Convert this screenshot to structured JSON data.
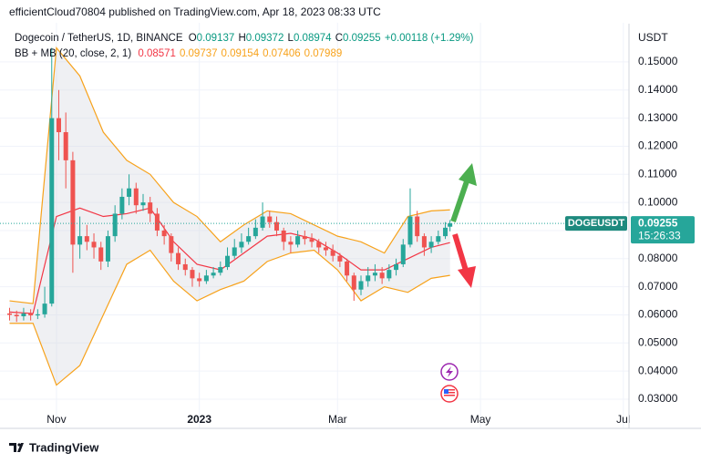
{
  "header": "efficientCloud70804 published on TradingView.com, Apr 18, 2023 08:33 UTC",
  "footer_brand": "TradingView",
  "chart_data": {
    "type": "candlestick",
    "title": "Dogecoin / TetherUS, 1D, BINANCE",
    "ohlc_letters": [
      "O",
      "H",
      "L",
      "C"
    ],
    "change_label": "+0.00118 (+1.29%)",
    "ylabel": "USDT",
    "countdown": "15:26:33",
    "ylim": [
      0.0261,
      0.1623
    ],
    "yticks": [
      {
        "value": 0.03,
        "label": "0.03000"
      },
      {
        "value": 0.04,
        "label": "0.04000"
      },
      {
        "value": 0.05,
        "label": "0.05000"
      },
      {
        "value": 0.06,
        "label": "0.06000"
      },
      {
        "value": 0.07,
        "label": "0.07000"
      },
      {
        "value": 0.08,
        "label": "0.08000"
      },
      {
        "value": 0.09,
        "label": "0.09000"
      },
      {
        "value": 0.1,
        "label": "0.10000"
      },
      {
        "value": 0.11,
        "label": "0.11000"
      },
      {
        "value": 0.12,
        "label": "0.12000"
      },
      {
        "value": 0.13,
        "label": "0.13000"
      },
      {
        "value": 0.14,
        "label": "0.14000"
      },
      {
        "value": 0.15,
        "label": "0.15000"
      }
    ],
    "xlim": [
      -20.2,
      244.4
    ],
    "xticks": [
      {
        "value": 0,
        "label": "Nov"
      },
      {
        "value": 61,
        "label": "2023"
      },
      {
        "value": 120,
        "label": "Mar"
      },
      {
        "value": 181,
        "label": "May"
      },
      {
        "value": 242,
        "label": "Jul"
      }
    ],
    "grid": true,
    "x": [
      -20,
      -17,
      -14,
      -11,
      -8,
      -5,
      -2,
      1,
      4,
      7,
      10,
      13,
      16,
      19,
      22,
      25,
      28,
      31,
      34,
      37,
      40,
      43,
      46,
      49,
      52,
      55,
      58,
      61,
      64,
      67,
      70,
      73,
      76,
      79,
      82,
      85,
      88,
      91,
      94,
      97,
      100,
      103,
      106,
      109,
      112,
      115,
      118,
      121,
      124,
      127,
      130,
      133,
      136,
      139,
      142,
      145,
      148,
      151,
      154,
      157,
      160,
      163,
      166,
      168
    ],
    "series": [
      {
        "name": "DOGEUSDT",
        "up_color": "#26a69a",
        "down_color": "#ef5350",
        "ohlc": [
          [
            0.0605,
            0.0625,
            0.058,
            0.06
          ],
          [
            0.06,
            0.0615,
            0.0575,
            0.0595
          ],
          [
            0.0595,
            0.0625,
            0.058,
            0.0605
          ],
          [
            0.0605,
            0.062,
            0.058,
            0.0598
          ],
          [
            0.0598,
            0.062,
            0.0585,
            0.0602
          ],
          [
            0.0602,
            0.07,
            0.059,
            0.064
          ],
          [
            0.064,
            0.155,
            0.063,
            0.13
          ],
          [
            0.13,
            0.14,
            0.115,
            0.125
          ],
          [
            0.125,
            0.132,
            0.105,
            0.115
          ],
          [
            0.115,
            0.118,
            0.075,
            0.085
          ],
          [
            0.085,
            0.095,
            0.08,
            0.088
          ],
          [
            0.088,
            0.092,
            0.083,
            0.086
          ],
          [
            0.086,
            0.089,
            0.08,
            0.084
          ],
          [
            0.084,
            0.086,
            0.076,
            0.079
          ],
          [
            0.079,
            0.09,
            0.077,
            0.088
          ],
          [
            0.088,
            0.099,
            0.086,
            0.096
          ],
          [
            0.096,
            0.105,
            0.094,
            0.102
          ],
          [
            0.102,
            0.11,
            0.099,
            0.105
          ],
          [
            0.105,
            0.107,
            0.096,
            0.099
          ],
          [
            0.099,
            0.103,
            0.097,
            0.1
          ],
          [
            0.1,
            0.102,
            0.093,
            0.096
          ],
          [
            0.096,
            0.098,
            0.088,
            0.09
          ],
          [
            0.09,
            0.092,
            0.085,
            0.088
          ],
          [
            0.088,
            0.089,
            0.079,
            0.082
          ],
          [
            0.082,
            0.084,
            0.076,
            0.078
          ],
          [
            0.078,
            0.08,
            0.074,
            0.076
          ],
          [
            0.076,
            0.077,
            0.07,
            0.073
          ],
          [
            0.073,
            0.075,
            0.07,
            0.072
          ],
          [
            0.072,
            0.076,
            0.071,
            0.074
          ],
          [
            0.074,
            0.077,
            0.073,
            0.075
          ],
          [
            0.075,
            0.079,
            0.074,
            0.077
          ],
          [
            0.077,
            0.084,
            0.076,
            0.081
          ],
          [
            0.081,
            0.087,
            0.08,
            0.084
          ],
          [
            0.084,
            0.089,
            0.082,
            0.086
          ],
          [
            0.086,
            0.091,
            0.085,
            0.088
          ],
          [
            0.088,
            0.094,
            0.087,
            0.091
          ],
          [
            0.091,
            0.1,
            0.09,
            0.095
          ],
          [
            0.095,
            0.097,
            0.091,
            0.093
          ],
          [
            0.093,
            0.095,
            0.088,
            0.09
          ],
          [
            0.09,
            0.091,
            0.083,
            0.086
          ],
          [
            0.086,
            0.088,
            0.082,
            0.085
          ],
          [
            0.085,
            0.09,
            0.084,
            0.088
          ],
          [
            0.088,
            0.09,
            0.085,
            0.087
          ],
          [
            0.087,
            0.089,
            0.084,
            0.086
          ],
          [
            0.086,
            0.087,
            0.082,
            0.084
          ],
          [
            0.084,
            0.086,
            0.081,
            0.083
          ],
          [
            0.083,
            0.085,
            0.079,
            0.081
          ],
          [
            0.081,
            0.082,
            0.077,
            0.079
          ],
          [
            0.079,
            0.08,
            0.072,
            0.074
          ],
          [
            0.074,
            0.075,
            0.065,
            0.069
          ],
          [
            0.069,
            0.074,
            0.067,
            0.072
          ],
          [
            0.072,
            0.077,
            0.07,
            0.074
          ],
          [
            0.074,
            0.078,
            0.072,
            0.075
          ],
          [
            0.075,
            0.077,
            0.071,
            0.073
          ],
          [
            0.073,
            0.078,
            0.072,
            0.076
          ],
          [
            0.076,
            0.08,
            0.074,
            0.078
          ],
          [
            0.078,
            0.087,
            0.077,
            0.085
          ],
          [
            0.085,
            0.105,
            0.084,
            0.095
          ],
          [
            0.095,
            0.097,
            0.086,
            0.088
          ],
          [
            0.088,
            0.089,
            0.081,
            0.084
          ],
          [
            0.084,
            0.088,
            0.082,
            0.086
          ],
          [
            0.086,
            0.09,
            0.085,
            0.088
          ],
          [
            0.088,
            0.093,
            0.087,
            0.091
          ],
          [
            0.09137,
            0.09372,
            0.08974,
            0.09255
          ]
        ]
      }
    ],
    "bands": {
      "label": "BB + MB (20, close, 2, 1)",
      "legend_values": [
        0.08571,
        0.09737,
        0.09154,
        0.07406,
        0.07989
      ],
      "legend_colors": [
        "#f23645",
        "#f7a21b",
        "#f7a21b",
        "#f7a21b",
        "#f7a21b"
      ],
      "band_color": "#f7a21b",
      "basis_color": "#f23645",
      "fill_color": "#d1d4dc",
      "x": [
        -20,
        -10,
        0,
        10,
        20,
        30,
        40,
        50,
        60,
        70,
        80,
        90,
        100,
        110,
        120,
        130,
        140,
        150,
        160,
        168
      ],
      "upper": [
        0.065,
        0.064,
        0.155,
        0.145,
        0.125,
        0.115,
        0.11,
        0.1,
        0.095,
        0.086,
        0.092,
        0.097,
        0.096,
        0.092,
        0.088,
        0.086,
        0.082,
        0.095,
        0.097,
        0.09737
      ],
      "basis": [
        0.061,
        0.0605,
        0.095,
        0.098,
        0.095,
        0.096,
        0.098,
        0.086,
        0.078,
        0.076,
        0.082,
        0.088,
        0.089,
        0.087,
        0.082,
        0.076,
        0.076,
        0.08,
        0.084,
        0.08571
      ],
      "lower": [
        0.057,
        0.057,
        0.035,
        0.042,
        0.06,
        0.078,
        0.083,
        0.072,
        0.065,
        0.069,
        0.072,
        0.079,
        0.082,
        0.083,
        0.076,
        0.065,
        0.07,
        0.068,
        0.073,
        0.07406
      ]
    }
  }
}
